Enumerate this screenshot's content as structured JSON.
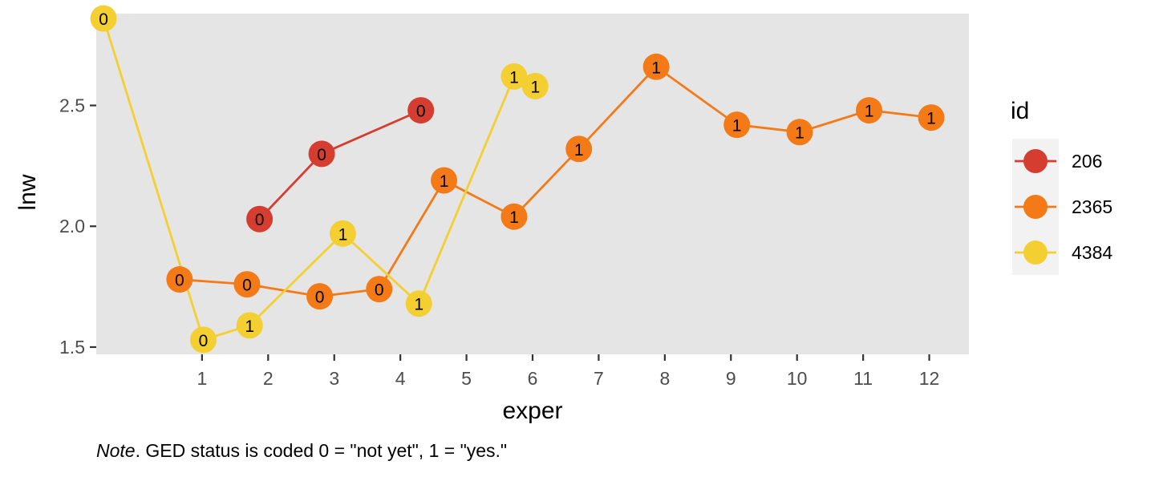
{
  "chart_data": {
    "type": "line",
    "xlabel": "exper",
    "ylabel": "lnw",
    "xlim": [
      -0.6,
      12.6
    ],
    "ylim": [
      1.47,
      2.88
    ],
    "xticks": [
      1,
      2,
      3,
      4,
      5,
      6,
      7,
      8,
      9,
      10,
      11,
      12
    ],
    "yticks": [
      1.5,
      2.0,
      2.5
    ],
    "ytick_labels": [
      "1.5",
      "2.0",
      "2.5"
    ],
    "grid": false,
    "legend": {
      "title": "id",
      "position": "right"
    },
    "series": [
      {
        "name": "206",
        "color": "#d43d2f",
        "points": [
          {
            "x": 1.87,
            "y": 2.03,
            "label": "0"
          },
          {
            "x": 2.81,
            "y": 2.3,
            "label": "0"
          },
          {
            "x": 4.31,
            "y": 2.48,
            "label": "0"
          }
        ]
      },
      {
        "name": "2365",
        "color": "#f47a17",
        "points": [
          {
            "x": 0.66,
            "y": 1.78,
            "label": "0"
          },
          {
            "x": 1.68,
            "y": 1.76,
            "label": "0"
          },
          {
            "x": 2.78,
            "y": 1.71,
            "label": "0"
          },
          {
            "x": 3.68,
            "y": 1.74,
            "label": "0"
          },
          {
            "x": 4.66,
            "y": 2.19,
            "label": "1"
          },
          {
            "x": 5.72,
            "y": 2.04,
            "label": "1"
          },
          {
            "x": 6.7,
            "y": 2.32,
            "label": "1"
          },
          {
            "x": 7.87,
            "y": 2.66,
            "label": "1"
          },
          {
            "x": 9.09,
            "y": 2.42,
            "label": "1"
          },
          {
            "x": 10.04,
            "y": 2.39,
            "label": "1"
          },
          {
            "x": 11.09,
            "y": 2.48,
            "label": "1"
          },
          {
            "x": 12.03,
            "y": 2.45,
            "label": "1"
          }
        ]
      },
      {
        "name": "4384",
        "color": "#f4cf32",
        "points": [
          {
            "x": -0.49,
            "y": 2.86,
            "label": "0"
          },
          {
            "x": 1.02,
            "y": 1.53,
            "label": "0"
          },
          {
            "x": 1.72,
            "y": 1.59,
            "label": "1"
          },
          {
            "x": 3.13,
            "y": 1.97,
            "label": "1"
          },
          {
            "x": 4.28,
            "y": 1.68,
            "label": "1"
          },
          {
            "x": 5.72,
            "y": 2.62,
            "label": "1"
          },
          {
            "x": 6.04,
            "y": 2.58,
            "label": "1"
          }
        ]
      }
    ],
    "caption_italic": "Note",
    "caption_rest": ". GED status is coded 0 = \"not yet\", 1 = \"yes.\""
  }
}
